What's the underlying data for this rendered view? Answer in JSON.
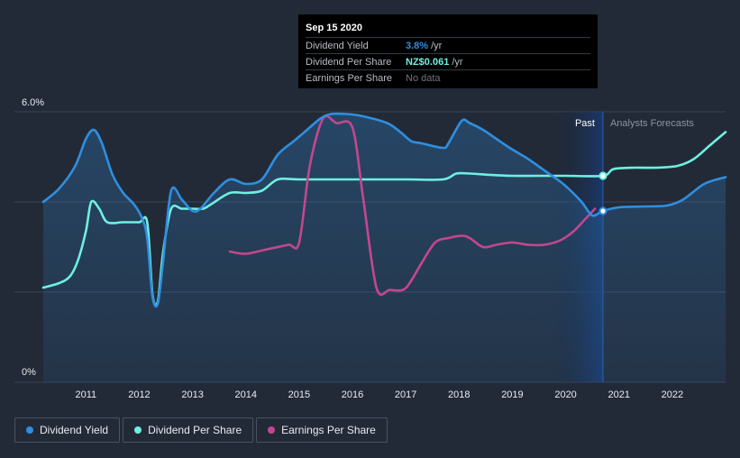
{
  "tooltip": {
    "date": "Sep 15 2020",
    "rows": [
      {
        "name": "Dividend Yield",
        "value": "3.8%",
        "unit": "/yr",
        "color": "#2f8fe0"
      },
      {
        "name": "Dividend Per Share",
        "value": "NZ$0.061",
        "unit": "/yr",
        "color": "#6ef0e1"
      },
      {
        "name": "Earnings Per Share",
        "value": "No data",
        "unit": "",
        "color": "#6e7480"
      }
    ]
  },
  "regions": {
    "past": "Past",
    "forecast": "Analysts Forecasts"
  },
  "legend": [
    {
      "label": "Dividend Yield",
      "color": "#2f8fe0"
    },
    {
      "label": "Dividend Per Share",
      "color": "#6ef0e1"
    },
    {
      "label": "Earnings Per Share",
      "color": "#c4478e"
    }
  ],
  "chart_data": {
    "type": "line",
    "y_tick_labels": [
      "6.0%",
      "0%"
    ],
    "x_tick_labels": [
      "2011",
      "2012",
      "2013",
      "2014",
      "2015",
      "2016",
      "2017",
      "2018",
      "2019",
      "2020",
      "2021",
      "2022"
    ],
    "ylim": [
      0,
      6
    ],
    "xlim": [
      2010.2,
      2023.0
    ],
    "now_x": 2020.7,
    "grid": true,
    "legend_position": "bottom",
    "series": [
      {
        "name": "Dividend Yield",
        "color": "#2f8fe0",
        "unit": "%",
        "points": [
          [
            2010.2,
            4.0
          ],
          [
            2010.5,
            4.3
          ],
          [
            2010.8,
            4.8
          ],
          [
            2011.0,
            5.4
          ],
          [
            2011.15,
            5.6
          ],
          [
            2011.3,
            5.3
          ],
          [
            2011.5,
            4.6
          ],
          [
            2011.7,
            4.2
          ],
          [
            2011.9,
            3.95
          ],
          [
            2012.05,
            3.65
          ],
          [
            2012.15,
            3.2
          ],
          [
            2012.25,
            1.9
          ],
          [
            2012.35,
            1.75
          ],
          [
            2012.45,
            2.7
          ],
          [
            2012.6,
            4.25
          ],
          [
            2012.8,
            4.05
          ],
          [
            2013.0,
            3.8
          ],
          [
            2013.15,
            3.85
          ],
          [
            2013.4,
            4.2
          ],
          [
            2013.7,
            4.5
          ],
          [
            2014.0,
            4.4
          ],
          [
            2014.3,
            4.5
          ],
          [
            2014.6,
            5.05
          ],
          [
            2014.9,
            5.35
          ],
          [
            2015.1,
            5.55
          ],
          [
            2015.4,
            5.85
          ],
          [
            2015.6,
            5.95
          ],
          [
            2015.9,
            5.95
          ],
          [
            2016.2,
            5.9
          ],
          [
            2016.65,
            5.75
          ],
          [
            2016.9,
            5.55
          ],
          [
            2017.1,
            5.35
          ],
          [
            2017.3,
            5.3
          ],
          [
            2017.7,
            5.2
          ],
          [
            2017.8,
            5.3
          ],
          [
            2018.05,
            5.8
          ],
          [
            2018.2,
            5.75
          ],
          [
            2018.45,
            5.6
          ],
          [
            2018.7,
            5.4
          ],
          [
            2018.95,
            5.2
          ],
          [
            2019.3,
            4.95
          ],
          [
            2019.6,
            4.7
          ],
          [
            2019.9,
            4.45
          ],
          [
            2020.05,
            4.3
          ],
          [
            2020.3,
            4.0
          ],
          [
            2020.5,
            3.7
          ],
          [
            2020.7,
            3.8
          ],
          [
            2021.0,
            3.88
          ],
          [
            2021.5,
            3.9
          ],
          [
            2021.9,
            3.92
          ],
          [
            2022.2,
            4.05
          ],
          [
            2022.6,
            4.4
          ],
          [
            2023.0,
            4.55
          ]
        ]
      },
      {
        "name": "Dividend Per Share",
        "color": "#6ef0e1",
        "unit": "NZ$/yr",
        "points": [
          [
            2010.2,
            2.1
          ],
          [
            2010.5,
            2.2
          ],
          [
            2010.7,
            2.35
          ],
          [
            2010.85,
            2.7
          ],
          [
            2011.0,
            3.35
          ],
          [
            2011.1,
            4.0
          ],
          [
            2011.25,
            3.85
          ],
          [
            2011.4,
            3.55
          ],
          [
            2011.7,
            3.55
          ],
          [
            2012.0,
            3.55
          ],
          [
            2012.15,
            3.55
          ],
          [
            2012.25,
            1.95
          ],
          [
            2012.35,
            1.8
          ],
          [
            2012.45,
            2.9
          ],
          [
            2012.6,
            3.85
          ],
          [
            2012.8,
            3.85
          ],
          [
            2013.0,
            3.85
          ],
          [
            2013.2,
            3.85
          ],
          [
            2013.35,
            3.95
          ],
          [
            2013.7,
            4.2
          ],
          [
            2014.0,
            4.2
          ],
          [
            2014.3,
            4.25
          ],
          [
            2014.6,
            4.5
          ],
          [
            2015.0,
            4.5
          ],
          [
            2016.0,
            4.5
          ],
          [
            2017.0,
            4.5
          ],
          [
            2017.7,
            4.5
          ],
          [
            2017.95,
            4.63
          ],
          [
            2018.2,
            4.63
          ],
          [
            2018.6,
            4.6
          ],
          [
            2019.0,
            4.58
          ],
          [
            2019.5,
            4.58
          ],
          [
            2020.0,
            4.58
          ],
          [
            2020.7,
            4.58
          ],
          [
            2020.9,
            4.73
          ],
          [
            2021.3,
            4.76
          ],
          [
            2021.7,
            4.76
          ],
          [
            2022.1,
            4.8
          ],
          [
            2022.4,
            4.95
          ],
          [
            2022.7,
            5.25
          ],
          [
            2023.0,
            5.55
          ]
        ]
      },
      {
        "name": "Earnings Per Share",
        "color": "#c4478e",
        "unit": "NZ$",
        "points": [
          [
            2013.7,
            2.9
          ],
          [
            2014.0,
            2.85
          ],
          [
            2014.4,
            2.95
          ],
          [
            2014.8,
            3.05
          ],
          [
            2015.0,
            3.1
          ],
          [
            2015.2,
            4.8
          ],
          [
            2015.45,
            5.85
          ],
          [
            2015.7,
            5.75
          ],
          [
            2016.0,
            5.65
          ],
          [
            2016.2,
            4.1
          ],
          [
            2016.45,
            2.1
          ],
          [
            2016.7,
            2.05
          ],
          [
            2016.95,
            2.05
          ],
          [
            2017.1,
            2.25
          ],
          [
            2017.3,
            2.65
          ],
          [
            2017.55,
            3.1
          ],
          [
            2017.8,
            3.2
          ],
          [
            2018.05,
            3.25
          ],
          [
            2018.2,
            3.2
          ],
          [
            2018.45,
            3.0
          ],
          [
            2018.7,
            3.05
          ],
          [
            2019.0,
            3.1
          ],
          [
            2019.3,
            3.05
          ],
          [
            2019.6,
            3.05
          ],
          [
            2019.9,
            3.15
          ],
          [
            2020.15,
            3.35
          ],
          [
            2020.35,
            3.6
          ],
          [
            2020.55,
            3.85
          ]
        ]
      }
    ]
  }
}
